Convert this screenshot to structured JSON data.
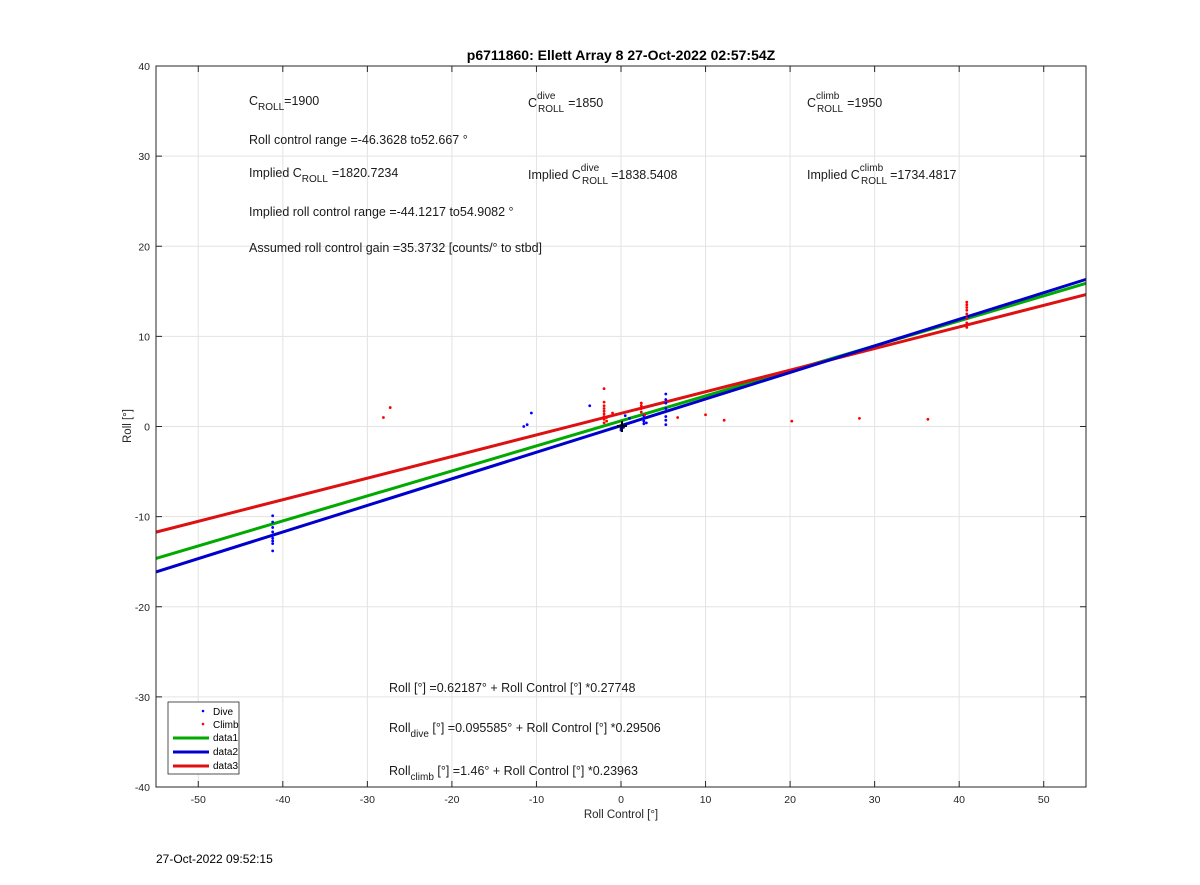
{
  "chart_data": {
    "type": "scatter",
    "title": "p6711860: Ellett Array 8 27-Oct-2022 02:57:54Z",
    "xlabel": "Roll Control [°]",
    "ylabel": "Roll [°]",
    "xlim": [
      -55,
      55
    ],
    "ylim": [
      -40,
      40
    ],
    "xticks": [
      -50,
      -40,
      -30,
      -20,
      -10,
      0,
      10,
      20,
      30,
      40,
      50
    ],
    "yticks": [
      -40,
      -30,
      -20,
      -10,
      0,
      10,
      20,
      30,
      40
    ],
    "grid": true,
    "legend_location": "bottom-left",
    "series": [
      {
        "name": "Dive",
        "kind": "points",
        "color": "#0000ff",
        "points": [
          [
            -41.2,
            -9.9
          ],
          [
            -41.2,
            -10.6
          ],
          [
            -41.2,
            -11.2
          ],
          [
            -41.2,
            -11.7
          ],
          [
            -41.2,
            -12.1
          ],
          [
            -41.2,
            -12.4
          ],
          [
            -41.2,
            -12.7
          ],
          [
            -41.2,
            -13.0
          ],
          [
            -41.2,
            -13.8
          ],
          [
            -11.5,
            0.0
          ],
          [
            -11.1,
            0.2
          ],
          [
            -10.6,
            1.5
          ],
          [
            -3.7,
            2.3
          ],
          [
            0.0,
            -0.2
          ],
          [
            0.0,
            -0.4
          ],
          [
            0.0,
            0.1
          ],
          [
            0.3,
            -0.1
          ],
          [
            2.7,
            0.3
          ],
          [
            2.7,
            0.6
          ],
          [
            2.7,
            0.9
          ],
          [
            2.7,
            1.2
          ],
          [
            3.0,
            0.4
          ],
          [
            5.3,
            0.2
          ],
          [
            5.3,
            0.7
          ],
          [
            5.3,
            1.1
          ],
          [
            5.3,
            2.0
          ],
          [
            5.3,
            2.6
          ],
          [
            5.3,
            3.0
          ],
          [
            5.3,
            3.6
          ],
          [
            1.0,
            0.9
          ],
          [
            0.5,
            1.2
          ]
        ]
      },
      {
        "name": "Climb",
        "kind": "points",
        "color": "#ff0000",
        "points": [
          [
            -28.1,
            1.0
          ],
          [
            -27.3,
            2.1
          ],
          [
            -2.0,
            0.4
          ],
          [
            -2.0,
            0.8
          ],
          [
            -2.0,
            1.1
          ],
          [
            -2.0,
            1.4
          ],
          [
            -2.0,
            1.7
          ],
          [
            -2.0,
            2.0
          ],
          [
            -2.0,
            2.3
          ],
          [
            -2.0,
            2.7
          ],
          [
            -2.0,
            4.2
          ],
          [
            -1.7,
            0.6
          ],
          [
            -1.7,
            1.0
          ],
          [
            -1.0,
            1.5
          ],
          [
            2.4,
            1.6
          ],
          [
            2.4,
            2.0
          ],
          [
            2.4,
            2.3
          ],
          [
            2.4,
            2.6
          ],
          [
            2.8,
            1.3
          ],
          [
            6.7,
            1.0
          ],
          [
            10.0,
            1.3
          ],
          [
            12.2,
            0.7
          ],
          [
            20.2,
            0.6
          ],
          [
            28.2,
            0.9
          ],
          [
            36.3,
            0.8
          ],
          [
            40.9,
            11.0
          ],
          [
            40.9,
            12.0
          ],
          [
            40.9,
            12.5
          ],
          [
            40.9,
            12.9
          ],
          [
            40.9,
            13.2
          ],
          [
            40.9,
            13.5
          ],
          [
            40.9,
            13.8
          ],
          [
            40.9,
            11.5
          ]
        ]
      },
      {
        "name": "data1",
        "kind": "line",
        "color": "#00aa00",
        "intercept": 0.62187,
        "slope": 0.27748
      },
      {
        "name": "data2",
        "kind": "line",
        "color": "#0000cc",
        "intercept": 0.095585,
        "slope": 0.29506
      },
      {
        "name": "data3",
        "kind": "line",
        "color": "#dd1111",
        "intercept": 1.46,
        "slope": 0.23963
      }
    ]
  },
  "annotations": {
    "c_roll": {
      "base": "C",
      "sub": "ROLL",
      "value": "=1900"
    },
    "c_roll_dive": {
      "base": "C",
      "sup": "dive",
      "sub": "ROLL",
      "value": "=1850"
    },
    "c_roll_climb": {
      "base": "C",
      "sup": "climb",
      "sub": "ROLL",
      "value": "=1950"
    },
    "roll_control_range": "Roll control range =-46.3628 to52.667 °",
    "implied_c_roll": {
      "prefix": "Implied C",
      "sub": "ROLL",
      "value": "=1820.7234"
    },
    "implied_c_roll_dive": {
      "prefix": "Implied C",
      "sup": "dive",
      "sub": "ROLL",
      "value": "=1838.5408"
    },
    "implied_c_roll_climb": {
      "prefix": "Implied C",
      "sup": "climb",
      "sub": "ROLL",
      "value": "=1734.4817"
    },
    "implied_range": "Implied roll control range =-44.1217 to54.9082 °",
    "assumed_gain": "Assumed roll control gain =35.3732 [counts/° to stbd]",
    "fit_all": "Roll [°] =0.62187° + Roll Control [°] *0.27748",
    "fit_dive": {
      "prefix": "Roll",
      "sub": "dive",
      "rest": " [°] =0.095585° + Roll Control [°] *0.29506"
    },
    "fit_climb": {
      "prefix": "Roll",
      "sub": "climb",
      "rest": " [°] =1.46° + Roll Control [°] *0.23963"
    }
  },
  "footer_timestamp": "27-Oct-2022 09:52:15"
}
